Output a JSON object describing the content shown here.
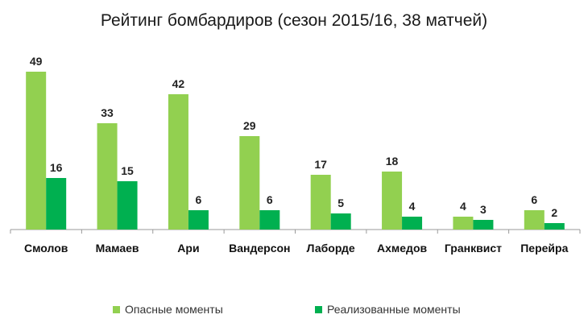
{
  "chart_data": {
    "type": "bar",
    "title": "Рейтинг бомбардиров (сезон 2015/16, 38 матчей)",
    "categories": [
      "Смолов",
      "Мамаев",
      "Ари",
      "Вандерсон",
      "Лаборде",
      "Ахмедов",
      "Гранквист",
      "Перейра"
    ],
    "series": [
      {
        "name": "Опасные моменты",
        "values": [
          49,
          33,
          42,
          29,
          17,
          18,
          4,
          6
        ],
        "color": "#92d050"
      },
      {
        "name": "Реализованные моменты",
        "values": [
          16,
          15,
          6,
          6,
          5,
          4,
          3,
          2
        ],
        "color": "#00b050"
      }
    ],
    "ylim": [
      0,
      50
    ],
    "grid": false,
    "legend_position": "bottom",
    "data_labels": true
  }
}
